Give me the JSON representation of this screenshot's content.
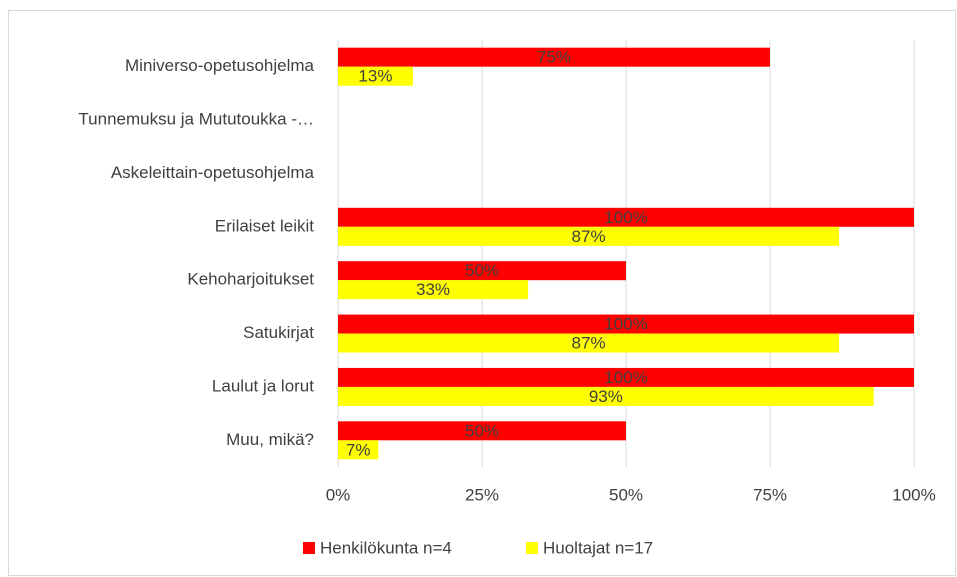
{
  "chart_data": {
    "type": "bar",
    "orientation": "horizontal",
    "categories": [
      "Miniverso-opetusohjelma",
      "Tunnemuksu ja Mututoukka -…",
      "Askeleittain-opetusohjelma",
      "Erilaiset leikit",
      "Kehoharjoitukset",
      "Satukirjat",
      "Laulut ja lorut",
      "Muu, mikä?"
    ],
    "series": [
      {
        "name": "Henkilökunta n=4",
        "color": "#ff0000",
        "values": [
          75,
          null,
          null,
          100,
          50,
          100,
          100,
          50
        ],
        "value_labels": [
          "75%",
          null,
          null,
          "100%",
          "50%",
          "100%",
          "100%",
          "50%"
        ]
      },
      {
        "name": "Huoltajat n=17",
        "color": "#ffff00",
        "values": [
          13,
          null,
          null,
          87,
          33,
          87,
          93,
          7
        ],
        "value_labels": [
          "13%",
          null,
          null,
          "87%",
          "33%",
          "87%",
          "93%",
          "7%"
        ]
      }
    ],
    "xlim": [
      0,
      100
    ],
    "xticks": [
      {
        "value": 0,
        "label": "0%"
      },
      {
        "value": 25,
        "label": "25%"
      },
      {
        "value": 50,
        "label": "50%"
      },
      {
        "value": 75,
        "label": "75%"
      },
      {
        "value": 100,
        "label": "100%"
      }
    ],
    "grid": true,
    "legend": "bottom"
  }
}
